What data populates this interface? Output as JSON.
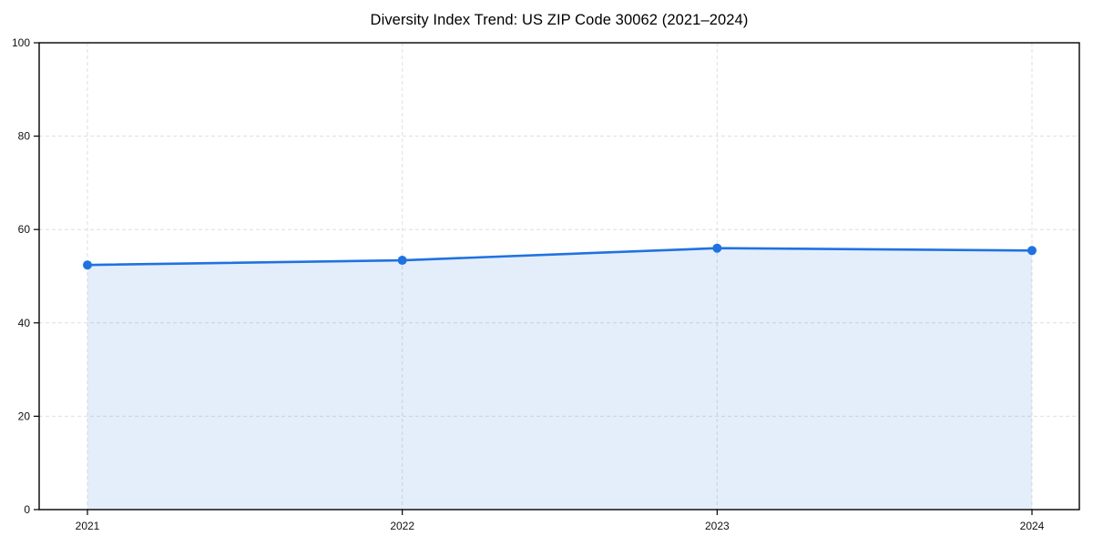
{
  "page": {
    "background": "#ffffff"
  },
  "chart_data": {
    "type": "area",
    "title": "Diversity Index Trend: US ZIP Code 30062 (2021–2024)",
    "x": [
      2021,
      2022,
      2023,
      2024
    ],
    "xtick_labels": [
      "2021",
      "2022",
      "2023",
      "2024"
    ],
    "series": [
      {
        "name": "Diversity Index",
        "values": [
          52.4,
          53.4,
          56.0,
          55.5
        ]
      }
    ],
    "xlabel": "",
    "ylabel": "",
    "ylim": [
      0,
      100
    ],
    "yticks": [
      0,
      20,
      40,
      60,
      80,
      100
    ],
    "grid": true,
    "grid_style": "dashed",
    "legend": false,
    "marker": "circle",
    "colors": {
      "line": "#2072e0",
      "marker": "#2072e0",
      "fill": "rgba(32,114,224,0.12)",
      "grid": "#dedede",
      "axis": "#000000",
      "tick_label": "#111111",
      "title": "#000000"
    }
  }
}
